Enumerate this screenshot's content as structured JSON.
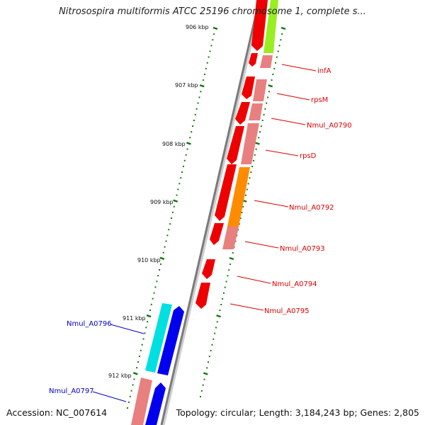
{
  "title": "Nitrosospira multiformis ATCC 25196 chromosome 1, complete s...",
  "footer": {
    "accession": "Accession: NC_007614",
    "stats": "Topology: circular; Length: 3,184,243 bp; Genes: 2,805"
  },
  "ticks": [
    {
      "label": "906 kbp"
    },
    {
      "label": "907 kbp"
    },
    {
      "label": "908 kbp"
    },
    {
      "label": "909 kbp"
    },
    {
      "label": "910 kbp"
    },
    {
      "label": "911 kbp"
    },
    {
      "label": "912 kbp"
    }
  ],
  "genes_right": [
    {
      "label": "infA",
      "color": "#dd0000"
    },
    {
      "label": "rpsM",
      "color": "#dd0000"
    },
    {
      "label": "Nmul_A0790",
      "color": "#dd0000"
    },
    {
      "label": "rpsD",
      "color": "#dd0000"
    },
    {
      "label": "Nmul_A0792",
      "color": "#dd0000"
    },
    {
      "label": "Nmul_A0793",
      "color": "#dd0000"
    },
    {
      "label": "Nmul_A0794",
      "color": "#dd0000"
    },
    {
      "label": "Nmul_A0795",
      "color": "#dd0000"
    }
  ],
  "genes_left": [
    {
      "label": "Nmul_A0796",
      "color": "#0000cc"
    },
    {
      "label": "Nmul_A0797",
      "color": "#0000cc"
    }
  ],
  "colors": {
    "cds_forward_red": "#ee0000",
    "cds_pink": "#e88080",
    "cds_orange": "#ff8c00",
    "cds_lightgreen": "#99ee22",
    "cds_blue": "#0000ee",
    "cds_cyan": "#00e0e0",
    "tick_green": "#117711",
    "backbone": "#888888"
  }
}
